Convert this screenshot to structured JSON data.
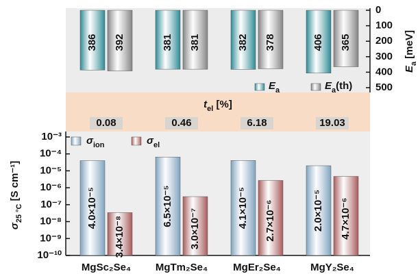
{
  "chart_data": [
    {
      "type": "bar",
      "y_inverted": true,
      "ylabel": {
        "symbol": "E",
        "sub": "a",
        "unit": " [meV]"
      },
      "series": [
        {
          "name": "E",
          "name_sub": "a",
          "color": "#2e8b95",
          "values": [
            386,
            381,
            382,
            406
          ]
        },
        {
          "name": "E",
          "name_sub": "a",
          "name_suffix": "(th)",
          "color": "#858585",
          "values": [
            392,
            381,
            378,
            365
          ]
        }
      ],
      "ylim": [
        0,
        500
      ],
      "yticks": [
        0,
        100,
        200,
        300,
        400,
        500
      ]
    },
    {
      "type": "table",
      "title": {
        "symbol": "t",
        "sub": "el",
        "unit": " [%]"
      },
      "values": [
        0.08,
        0.46,
        6.18,
        19.03
      ]
    },
    {
      "type": "bar",
      "log_scale": true,
      "categories": [
        "MgSc₂Se₄",
        "MgTm₂Se₄",
        "MgEr₂Se₄",
        "MgY₂Se₄"
      ],
      "ylabel": {
        "symbol": "σ",
        "sub": "25 °C",
        "unit": " [S cm⁻¹]"
      },
      "series": [
        {
          "name": "σ",
          "name_sub": "ion",
          "color": "#7fa3bf",
          "values": [
            4e-05,
            6.5e-05,
            4.1e-05,
            2e-05
          ],
          "value_labels": [
            "4.0×10⁻⁵",
            "6.5×10⁻⁵",
            "4.1×10⁻⁵",
            "2.0×10⁻⁵"
          ]
        },
        {
          "name": "σ",
          "name_sub": "el",
          "color": "#a85a5a",
          "values": [
            3.4e-08,
            3e-07,
            2.7e-06,
            4.7e-06
          ],
          "value_labels": [
            "3.4×10⁻⁸",
            "3.0×10⁻⁷",
            "2.7×10⁻⁶",
            "4.7×10⁻⁶"
          ]
        }
      ],
      "ylim": [
        1e-10,
        0.001
      ],
      "yticks": [
        {
          "value": 1e-10,
          "label": "10⁻¹⁰"
        },
        {
          "value": 1e-09,
          "label": "10⁻⁹"
        },
        {
          "value": 1e-08,
          "label": "10⁻⁸"
        },
        {
          "value": 1e-07,
          "label": "10⁻⁷"
        },
        {
          "value": 1e-06,
          "label": "10⁻⁶"
        },
        {
          "value": 1e-05,
          "label": "10⁻⁵"
        },
        {
          "value": 0.0001,
          "label": "10⁻⁴"
        },
        {
          "value": 0.001,
          "label": "10⁻³"
        }
      ]
    }
  ]
}
